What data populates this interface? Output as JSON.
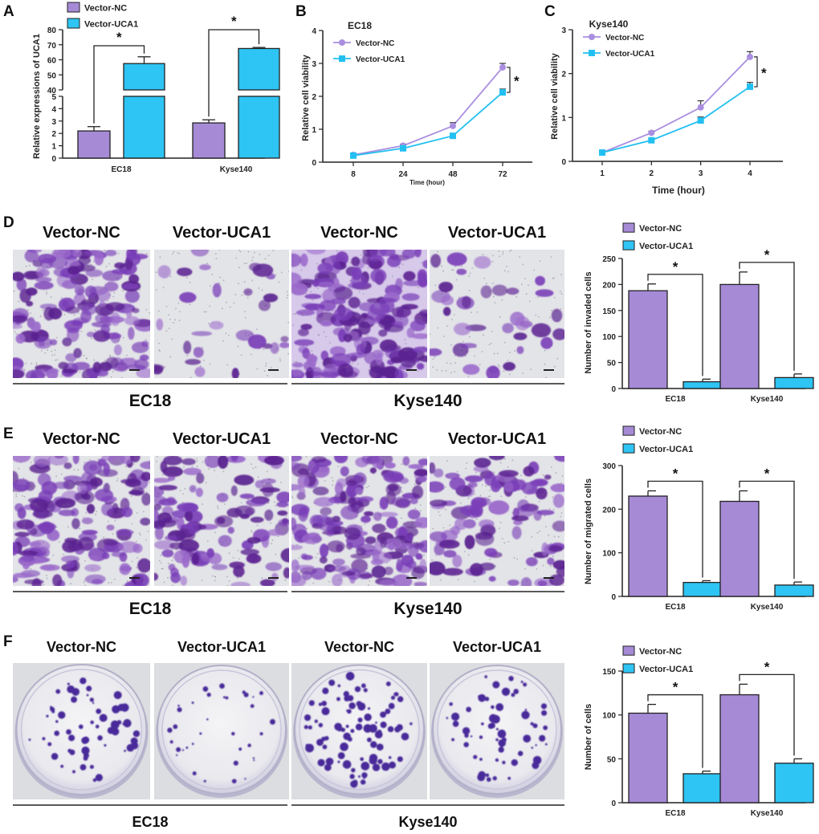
{
  "colors": {
    "nc_fill": "#a68ad6",
    "uca1_fill": "#2ec4f3",
    "nc_line": "#a98ee0",
    "uca1_line": "#22c0f0",
    "stain": "#7a3fb8",
    "stain_dark": "#5a2190",
    "colony": "#4a2b9a"
  },
  "panels": {
    "a": "A",
    "b": "B",
    "c": "C",
    "d": "D",
    "e": "E",
    "f": "F"
  },
  "chart_data": [
    {
      "id": "A",
      "type": "bar",
      "title": "",
      "ylabel": "Relative expressions of UCA1",
      "categories": [
        "EC18",
        "Kyse140"
      ],
      "series": [
        {
          "name": "Vector-NC",
          "values": [
            2.2,
            2.85
          ],
          "errors": [
            0.35,
            0.25
          ]
        },
        {
          "name": "Vector-UCA1",
          "values": [
            57.5,
            67.5
          ],
          "errors": [
            4.5,
            0.7
          ]
        }
      ],
      "ylim_low": [
        0,
        5
      ],
      "ylim_high": [
        40,
        80
      ],
      "ticks_low": [
        "0",
        "1",
        "2",
        "3",
        "4",
        "5"
      ],
      "ticks_high": [
        "40",
        "50",
        "60",
        "70",
        "80"
      ],
      "significance": "*"
    },
    {
      "id": "B",
      "type": "line",
      "title": "EC18",
      "xlabel": "Time (hour)",
      "ylabel": "Relative cell viability",
      "x": [
        "8",
        "24",
        "48",
        "72"
      ],
      "series": [
        {
          "name": "Vector-NC",
          "values": [
            0.22,
            0.5,
            1.1,
            2.88
          ],
          "errors": [
            0.03,
            0.04,
            0.1,
            0.12
          ]
        },
        {
          "name": "Vector-UCA1",
          "values": [
            0.2,
            0.42,
            0.8,
            2.12
          ],
          "errors": [
            0.02,
            0.03,
            0.05,
            0.1
          ]
        }
      ],
      "ylim": [
        0,
        4
      ],
      "yticks": [
        "0",
        "1",
        "2",
        "3",
        "4"
      ],
      "significance": "*"
    },
    {
      "id": "C",
      "type": "line",
      "title": "Kyse140",
      "xlabel": "Time (hour)",
      "ylabel": "Relative cell viability",
      "x": [
        "1",
        "2",
        "3",
        "4"
      ],
      "series": [
        {
          "name": "Vector-NC",
          "values": [
            0.2,
            0.65,
            1.23,
            2.38
          ],
          "errors": [
            0.02,
            0.03,
            0.15,
            0.12
          ]
        },
        {
          "name": "Vector-UCA1",
          "values": [
            0.2,
            0.48,
            0.93,
            1.7
          ],
          "errors": [
            0.02,
            0.03,
            0.08,
            0.1
          ]
        }
      ],
      "ylim": [
        0,
        3
      ],
      "yticks": [
        "0",
        "1",
        "2",
        "3"
      ],
      "significance": "*"
    },
    {
      "id": "D",
      "type": "bar",
      "ylabel": "Number of invaded cells",
      "categories": [
        "EC18",
        "Kyse140"
      ],
      "series": [
        {
          "name": "Vector-NC",
          "values": [
            188,
            200
          ],
          "errors": [
            13,
            24
          ]
        },
        {
          "name": "Vector-UCA1",
          "values": [
            13,
            21
          ],
          "errors": [
            5,
            7
          ]
        }
      ],
      "ylim": [
        0,
        250
      ],
      "yticks": [
        "0",
        "50",
        "100",
        "150",
        "200",
        "250"
      ],
      "significance": "*"
    },
    {
      "id": "E",
      "type": "bar",
      "ylabel": "Number of migrated cells",
      "categories": [
        "EC18",
        "Kyse140"
      ],
      "series": [
        {
          "name": "Vector-NC",
          "values": [
            230,
            218
          ],
          "errors": [
            12,
            24
          ]
        },
        {
          "name": "Vector-UCA1",
          "values": [
            32,
            26
          ],
          "errors": [
            4,
            7
          ]
        }
      ],
      "ylim": [
        0,
        300
      ],
      "yticks": [
        "0",
        "100",
        "200",
        "300"
      ],
      "significance": "*"
    },
    {
      "id": "F",
      "type": "bar",
      "ylabel": "Number of cells",
      "categories": [
        "EC18",
        "Kyse140"
      ],
      "series": [
        {
          "name": "Vector-NC",
          "values": [
            102,
            123
          ],
          "errors": [
            10,
            12
          ]
        },
        {
          "name": "Vector-UCA1",
          "values": [
            33,
            45
          ],
          "errors": [
            3,
            5
          ]
        }
      ],
      "ylim": [
        0,
        150
      ],
      "yticks": [
        "0",
        "50",
        "100",
        "150"
      ],
      "significance": "*"
    }
  ],
  "micrographs": {
    "titles": [
      "Vector-NC",
      "Vector-UCA1",
      "Vector-NC",
      "Vector-UCA1"
    ],
    "groups": [
      "EC18",
      "Kyse140"
    ]
  }
}
